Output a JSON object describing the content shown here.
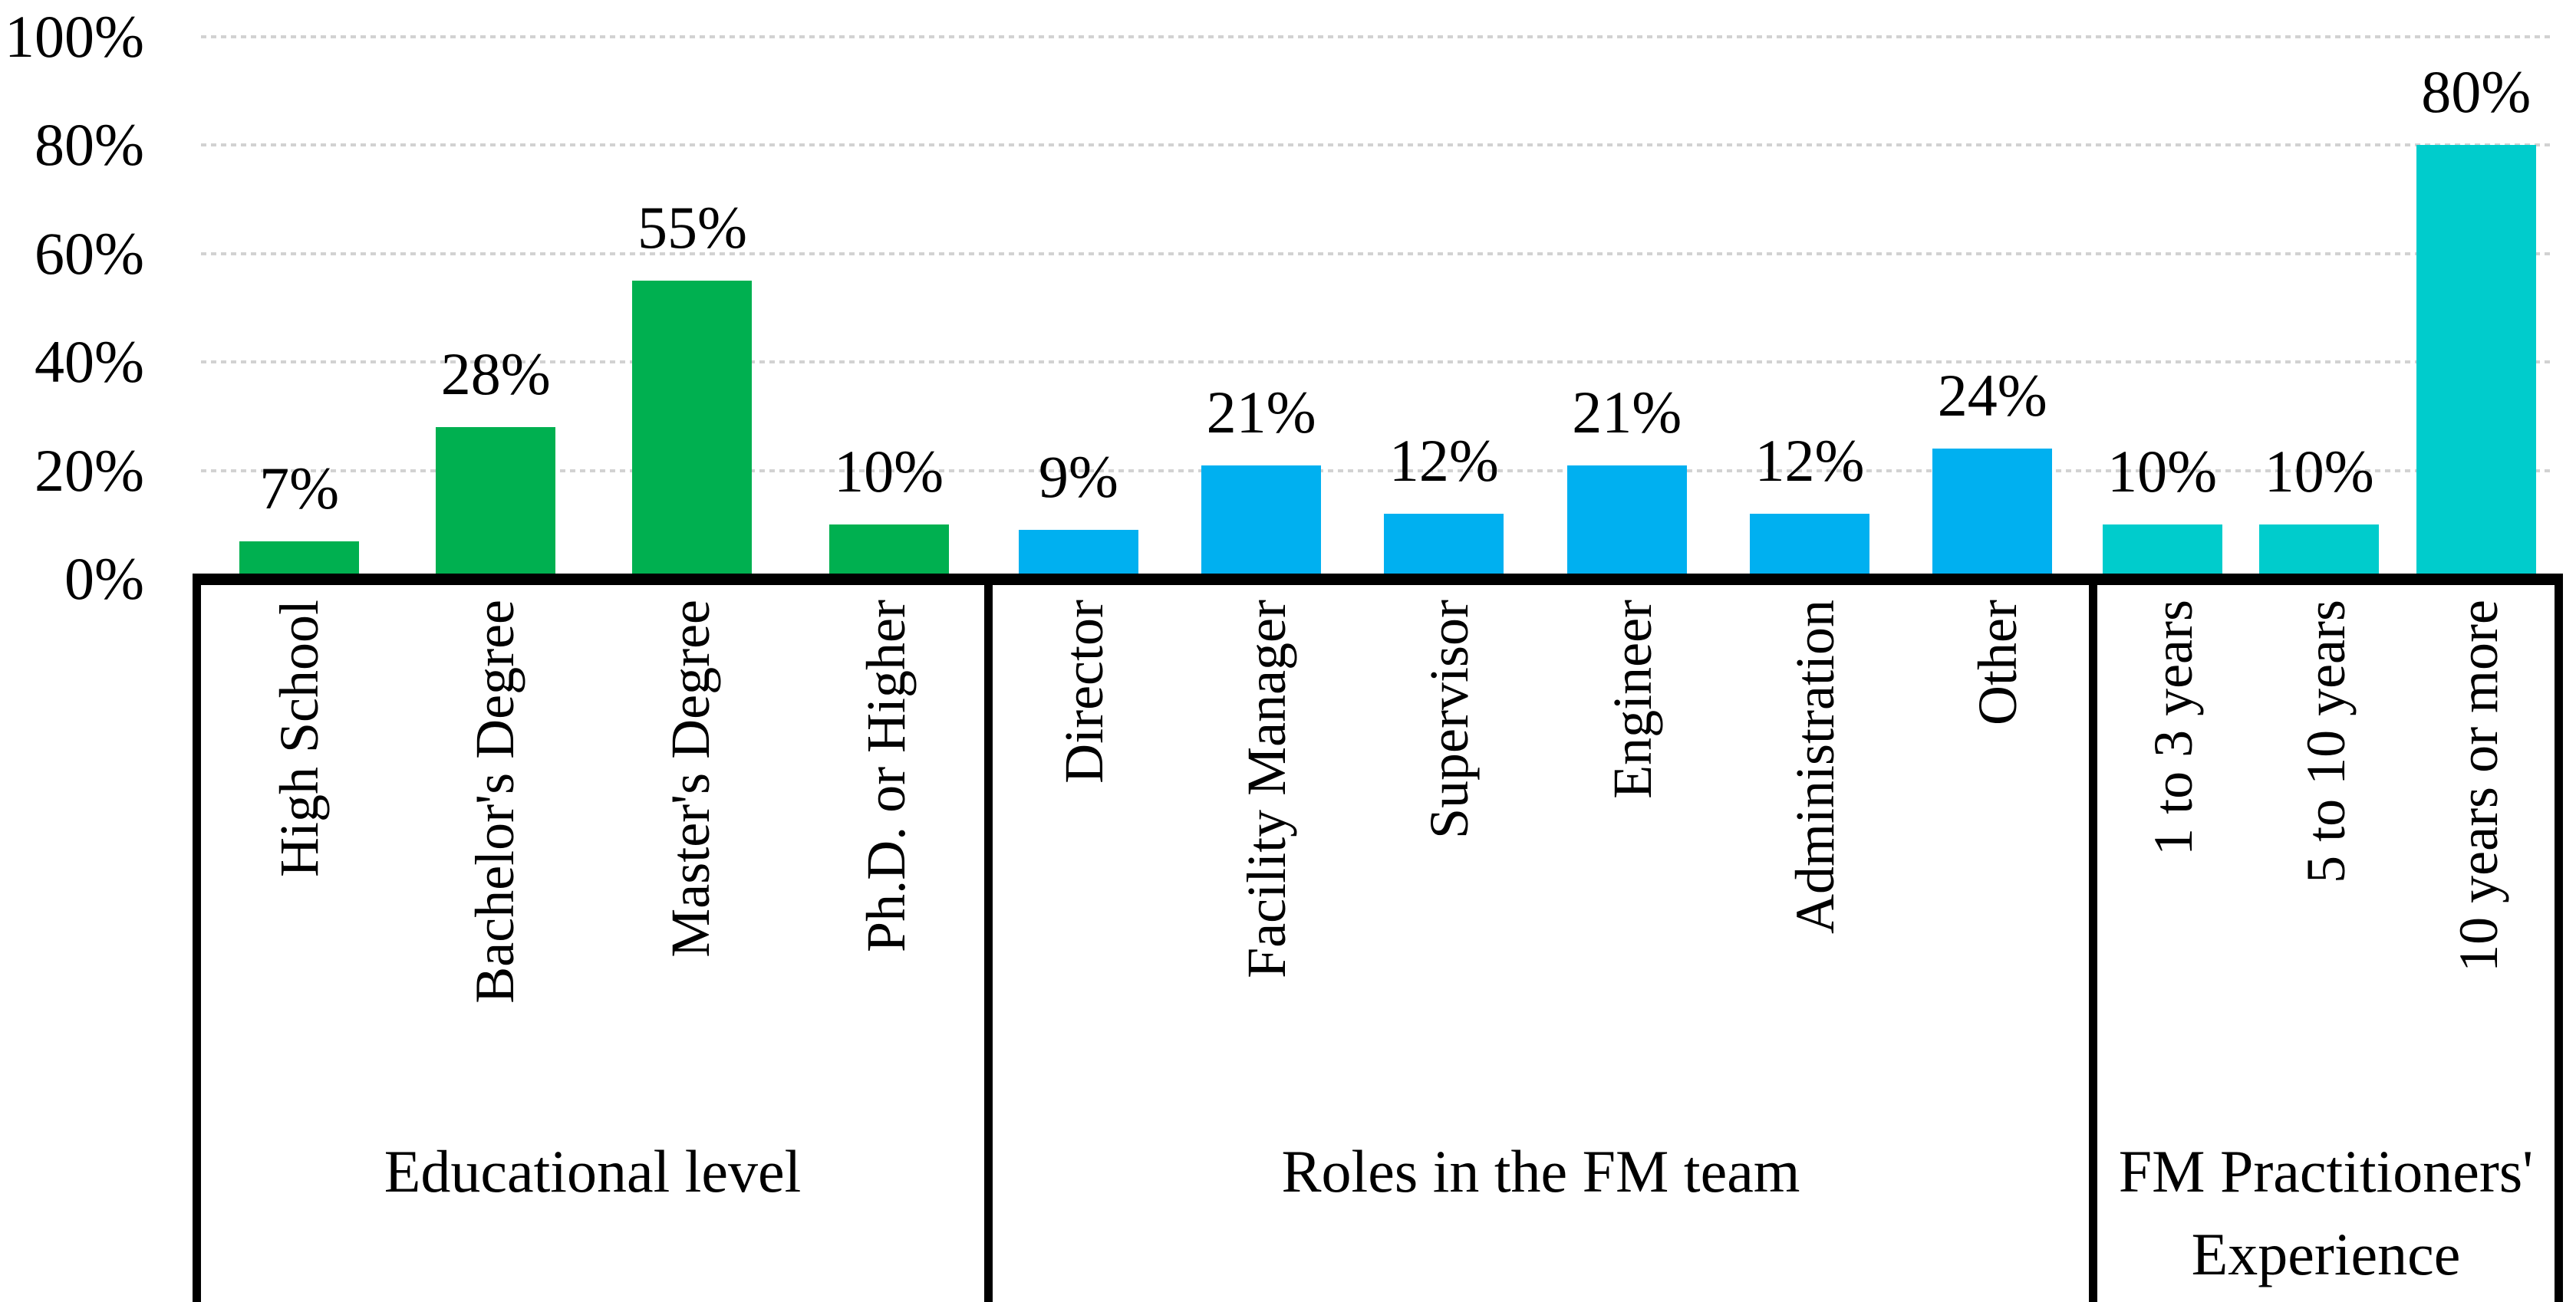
{
  "chart_data": {
    "type": "bar",
    "title": "",
    "xlabel": "",
    "ylabel": "",
    "ylim": [
      0,
      100
    ],
    "grid": "horizontal-dotted",
    "legend": "none",
    "value_suffix": "%",
    "yticks": [
      {
        "value": 0,
        "label": "0%"
      },
      {
        "value": 20,
        "label": "20%"
      },
      {
        "value": 40,
        "label": "40%"
      },
      {
        "value": 60,
        "label": "60%"
      },
      {
        "value": 80,
        "label": "80%"
      },
      {
        "value": 100,
        "label": "100%"
      }
    ],
    "groups": [
      {
        "title": "Educational level",
        "title_lines": [
          "Educational level"
        ],
        "color": "#00B050",
        "width_pct": 33.4,
        "bars": [
          {
            "category": "High School",
            "value": 7,
            "label": "7%"
          },
          {
            "category": "Bachelor's Degree",
            "value": 28,
            "label": "28%"
          },
          {
            "category": "Master's Degree",
            "value": 55,
            "label": "55%"
          },
          {
            "category": "Ph.D. or Higher",
            "value": 10,
            "label": "10%"
          }
        ]
      },
      {
        "title": "Roles in the FM team",
        "title_lines": [
          "Roles in the FM team"
        ],
        "color": "#00B0F0",
        "width_pct": 46.6,
        "bars": [
          {
            "category": "Director",
            "value": 9,
            "label": "9%"
          },
          {
            "category": "Facility Manager",
            "value": 21,
            "label": "21%"
          },
          {
            "category": "Supervisor",
            "value": 12,
            "label": "12%"
          },
          {
            "category": "Engineer",
            "value": 21,
            "label": "21%"
          },
          {
            "category": "Administration",
            "value": 12,
            "label": "12%"
          },
          {
            "category": "Other",
            "value": 24,
            "label": "24%"
          }
        ]
      },
      {
        "title": "FM Practitioners' Experience",
        "title_lines": [
          "FM Practitioners'",
          "Experience"
        ],
        "color": "#00CCCC",
        "width_pct": 20.0,
        "bars": [
          {
            "category": "1 to 3 years",
            "value": 10,
            "label": "10%"
          },
          {
            "category": "5 to 10 years",
            "value": 10,
            "label": "10%"
          },
          {
            "category": "10 years or more",
            "value": 80,
            "label": "80%"
          }
        ]
      }
    ],
    "colors": {
      "grid": "#D2D2D2",
      "axis": "#000000",
      "text": "#000000",
      "background": "#FFFFFF"
    }
  }
}
